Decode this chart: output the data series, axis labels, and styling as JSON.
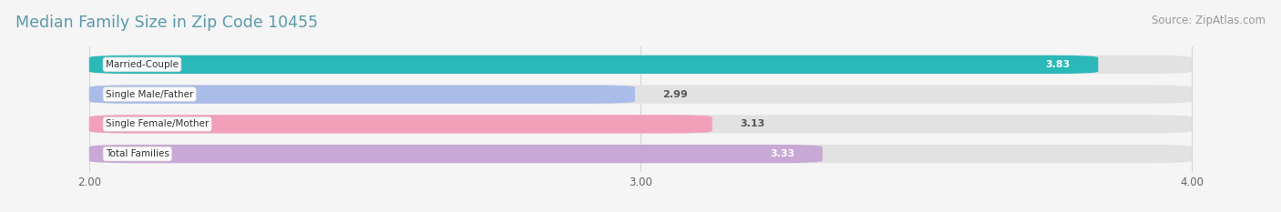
{
  "title": "Median Family Size in Zip Code 10455",
  "source": "Source: ZipAtlas.com",
  "categories": [
    "Married-Couple",
    "Single Male/Father",
    "Single Female/Mother",
    "Total Families"
  ],
  "values": [
    3.83,
    2.99,
    3.13,
    3.33
  ],
  "bar_colors": [
    "#2ab8b8",
    "#aabce8",
    "#f2a0ba",
    "#c8a8d4"
  ],
  "xlim": [
    1.85,
    4.15
  ],
  "xmin": 2.0,
  "xmax": 4.0,
  "xticks": [
    2.0,
    3.0,
    4.0
  ],
  "xtick_labels": [
    "2.00",
    "3.00",
    "4.00"
  ],
  "title_color": "#5a9aaa",
  "title_fontsize": 12.5,
  "bar_height": 0.62,
  "value_label_color_inside": "#ffffff",
  "value_label_color_outside": "#555555",
  "source_color": "#999999",
  "source_fontsize": 8.5,
  "category_fontsize": 7.5,
  "value_fontsize": 8,
  "tick_fontsize": 8.5,
  "background_color": "#f5f5f5",
  "bg_bar_color": "#e2e2e2",
  "inside_threshold": 3.3,
  "rounding_size": 0.08
}
